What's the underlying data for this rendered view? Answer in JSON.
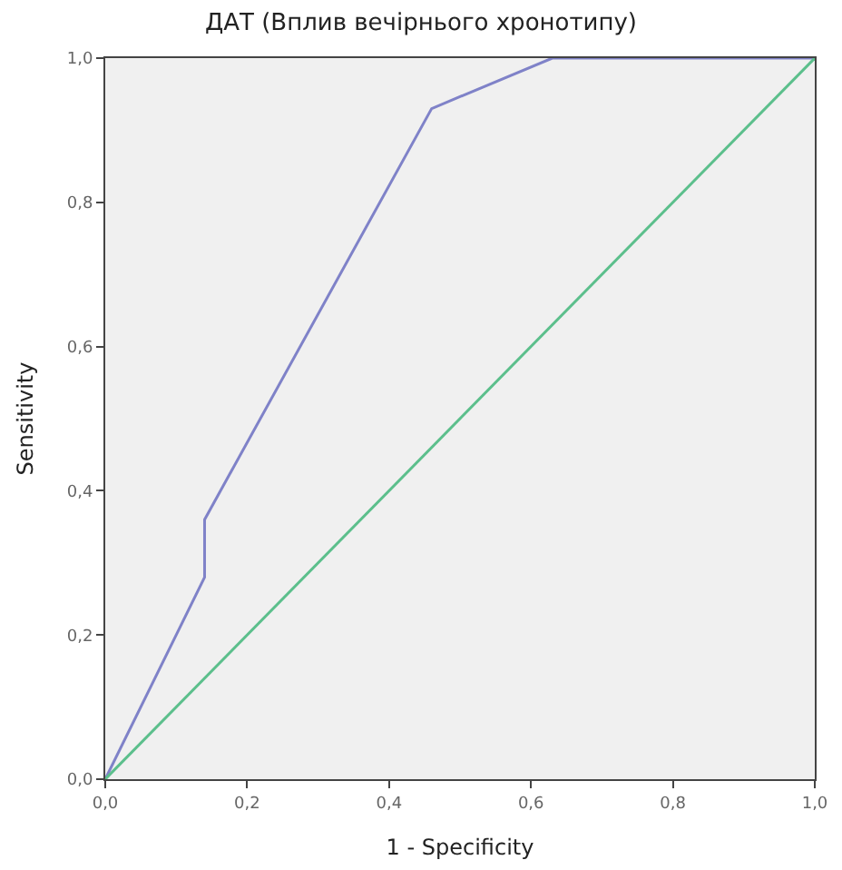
{
  "chart_data": {
    "type": "line",
    "title": "ДАТ (Вплив вечірнього хронотипу)",
    "xlabel": "1 - Specificity",
    "ylabel": "Sensitivity",
    "series": [
      {
        "color": "#7f82c8",
        "x": [
          0,
          0.14,
          0.14,
          0.46,
          0.63,
          1.0
        ],
        "values": [
          0,
          0.28,
          0.36,
          0.93,
          1.0,
          1.0
        ]
      },
      {
        "color": "#5cbf8c",
        "x": [
          0,
          1.0
        ],
        "values": [
          0,
          1.0
        ]
      }
    ],
    "xlim": [
      0,
      1
    ],
    "ylim": [
      0,
      1
    ],
    "xticks": [
      {
        "value": 0,
        "label": "0,0"
      },
      {
        "value": 0.2,
        "label": "0,2"
      },
      {
        "value": 0.4,
        "label": "0,4"
      },
      {
        "value": 0.6,
        "label": "0,6"
      },
      {
        "value": 0.8,
        "label": "0,8"
      },
      {
        "value": 1.0,
        "label": "1,0"
      }
    ],
    "yticks": [
      {
        "value": 0,
        "label": "0,0"
      },
      {
        "value": 0.2,
        "label": "0,2"
      },
      {
        "value": 0.4,
        "label": "0,4"
      },
      {
        "value": 0.6,
        "label": "0,6"
      },
      {
        "value": 0.8,
        "label": "0,8"
      },
      {
        "value": 1.0,
        "label": "1,0"
      }
    ],
    "grid": false,
    "marker": "none",
    "line_style": "solid"
  }
}
